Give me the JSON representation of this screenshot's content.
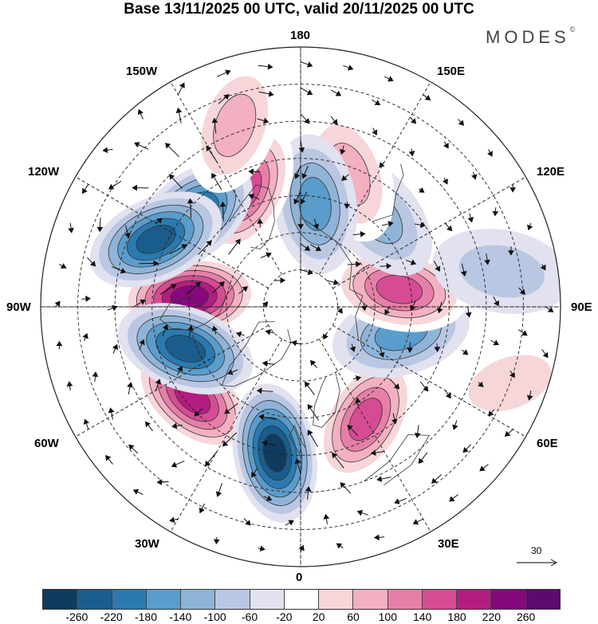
{
  "title": "Base 13/11/2025 00 UTC, valid 20/11/2025 00 UTC",
  "brand": "MODES",
  "brand_mark": "©",
  "longitude_labels": {
    "top": "180",
    "bottom": "0",
    "left": "90W",
    "right": "90E",
    "upper_left": "150W",
    "upper_right": "150E",
    "left_upper": "120W",
    "right_upper": "120E",
    "left_lower": "60W",
    "right_lower": "60E",
    "lower_left": "30W",
    "lower_right": "30E"
  },
  "reference_vector": "30",
  "colorbar": {
    "colors": [
      "#0f3b5f",
      "#1a5d8c",
      "#2a7ab0",
      "#5a9ccb",
      "#8fb4d8",
      "#b9c7e2",
      "#e1e1ef",
      "#ffffff",
      "#f7d6d9",
      "#f2b0c0",
      "#e67fa7",
      "#d54c93",
      "#b31d80",
      "#86097b",
      "#5b0b6e"
    ],
    "ticks": [
      "-260",
      "-220",
      "-180",
      "-140",
      "-100",
      "-60",
      "-20",
      "20",
      "60",
      "100",
      "140",
      "180",
      "220",
      "260"
    ]
  },
  "anomalies": [
    {
      "lat": 60,
      "lon": -95,
      "value": 240
    },
    {
      "lat": 52,
      "lon": -50,
      "value": 200
    },
    {
      "lat": 50,
      "lon": -10,
      "value": -240
    },
    {
      "lat": 55,
      "lon": 30,
      "value": 180
    },
    {
      "lat": 62,
      "lon": 75,
      "value": -150
    },
    {
      "lat": 63,
      "lon": 100,
      "value": 170
    },
    {
      "lat": 58,
      "lon": 140,
      "value": -100
    },
    {
      "lat": 52,
      "lon": 160,
      "value": 90
    },
    {
      "lat": 62,
      "lon": 172,
      "value": -140
    },
    {
      "lat": 55,
      "lon": -155,
      "value": 170
    },
    {
      "lat": 52,
      "lon": -130,
      "value": -220
    },
    {
      "lat": 47,
      "lon": -115,
      "value": -200
    },
    {
      "lat": 57,
      "lon": -70,
      "value": -200
    },
    {
      "lat": 38,
      "lon": -160,
      "value": 110
    },
    {
      "lat": 35,
      "lon": 100,
      "value": -60
    },
    {
      "lat": 30,
      "lon": 70,
      "value": 60
    }
  ]
}
